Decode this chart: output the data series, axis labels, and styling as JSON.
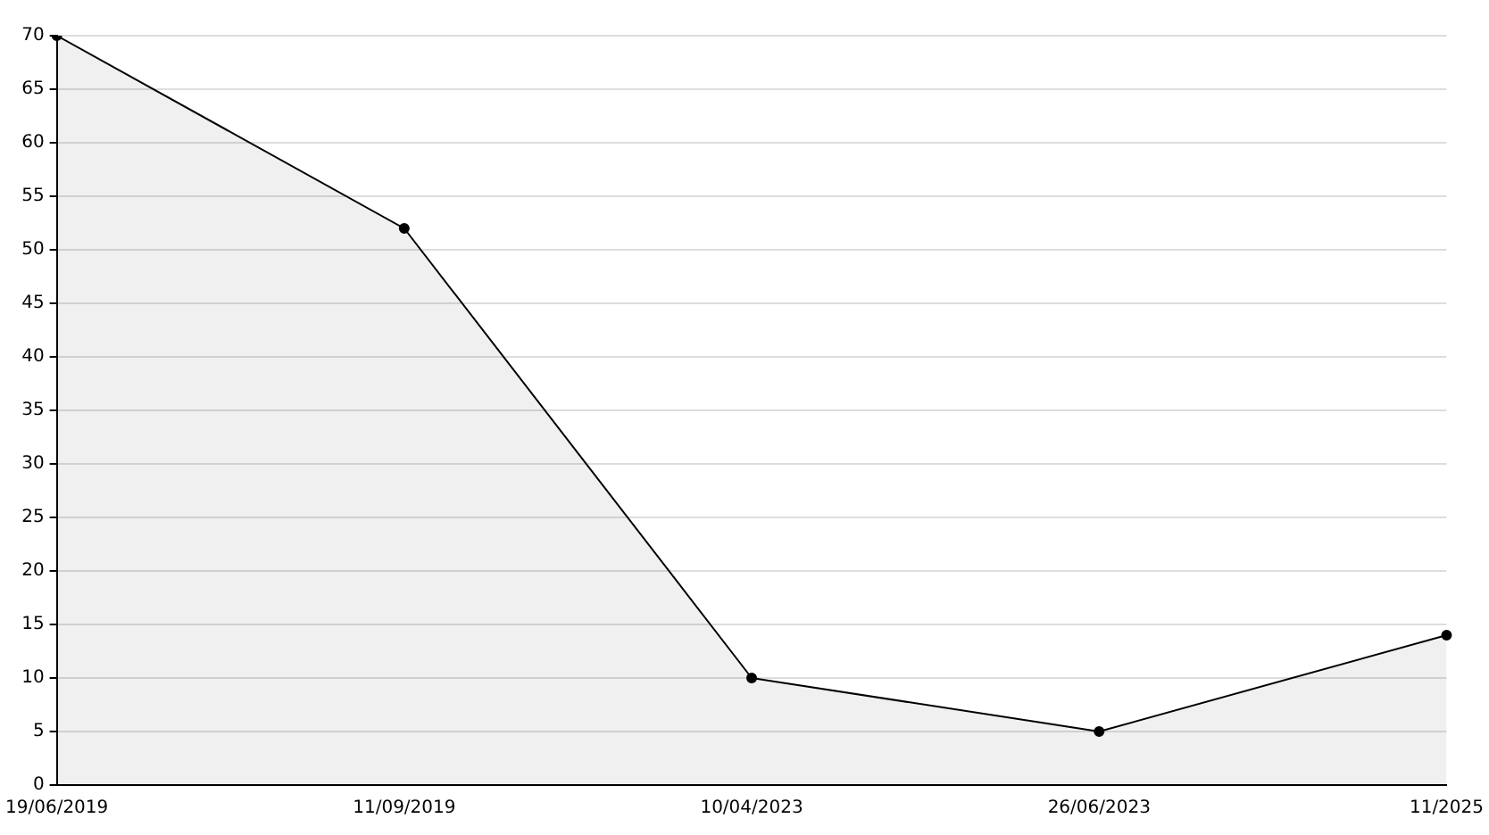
{
  "chart_data": {
    "type": "area",
    "categories": [
      "19/06/2019",
      "11/09/2019",
      "10/04/2023",
      "26/06/2023",
      "11/2025"
    ],
    "series": [
      {
        "color": "#000000",
        "values": [
          70,
          52,
          10,
          5,
          14
        ]
      }
    ],
    "ylim": [
      0,
      70
    ],
    "yticks": [
      0,
      5,
      10,
      15,
      20,
      25,
      30,
      35,
      40,
      45,
      50,
      55,
      60,
      65,
      70
    ],
    "grid": "y",
    "legend": false,
    "marker": "circle",
    "line_style": "solid"
  }
}
